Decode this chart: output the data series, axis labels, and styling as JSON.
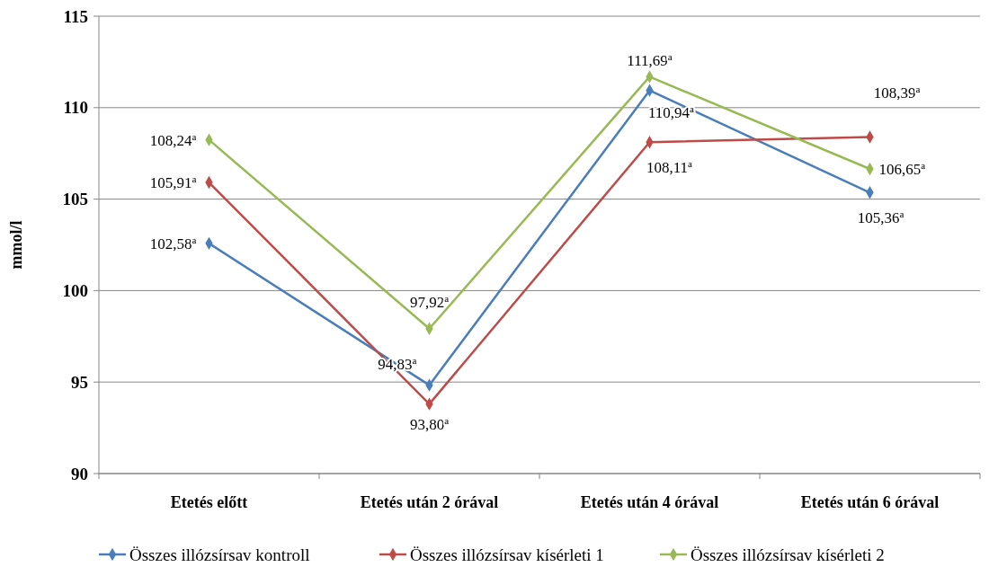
{
  "chart_data": {
    "type": "line",
    "ylabel": "mmol/l",
    "categories": [
      "Etetés előtt",
      "Etetés után 2 órával",
      "Etetés után 4 órával",
      "Etetés után 6 órával"
    ],
    "series": [
      {
        "name": "Összes illózsírsav kontroll",
        "color": "#4a7ebb",
        "values": [
          102.58,
          94.83,
          110.94,
          105.36
        ],
        "value_labels": [
          "102,58$^{a}$",
          "94,83$^{a}$",
          "110,94$^{a}$",
          "105,36$^{a}$"
        ]
      },
      {
        "name": "Összes illózsírsav kísérleti 1",
        "color": "#be4b48",
        "values": [
          105.91,
          93.8,
          108.11,
          108.39
        ],
        "value_labels": [
          "105,91$^{a}$",
          "93,80$^{a}$",
          "108,11$^{a}$",
          "108,39$^{a}$"
        ]
      },
      {
        "name": "Összes illózsírsav kísérleti 2",
        "color": "#98b954",
        "values": [
          108.24,
          97.92,
          111.69,
          106.65
        ],
        "value_labels": [
          "108,24$^{a}$",
          "97,92$^{a}$",
          "111,69$^{a}$",
          "106,65$^{a}$"
        ]
      }
    ],
    "ylim": [
      90,
      115
    ],
    "yticks": [
      90,
      95,
      100,
      105,
      110,
      115
    ],
    "grid": "y",
    "legend": "bottom",
    "marker": "diamond",
    "line_style": "solid"
  }
}
